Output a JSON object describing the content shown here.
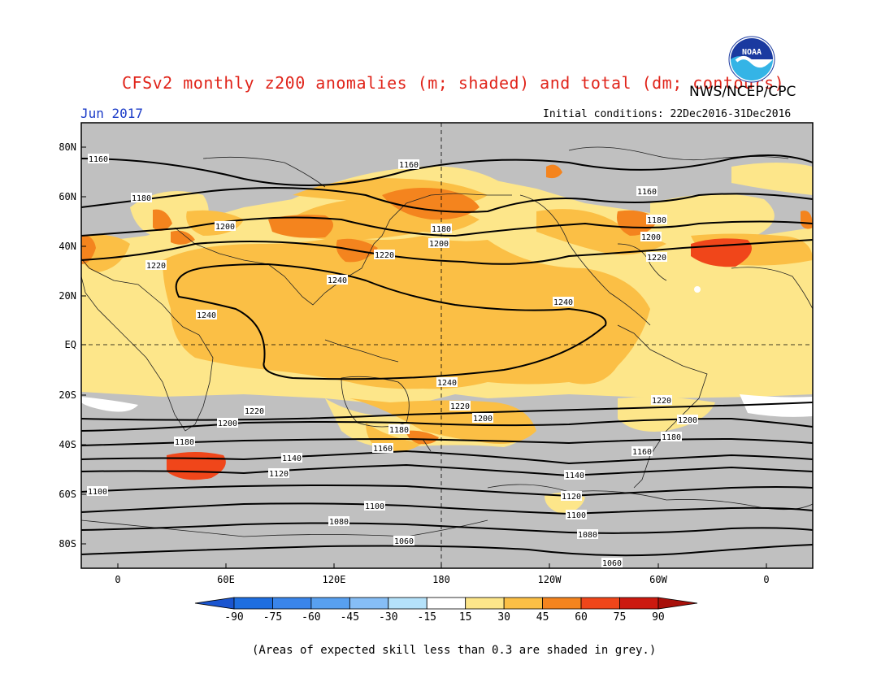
{
  "header": {
    "title": "CFSv2 monthly z200 anomalies (m; shaded) and total (dm; contours)",
    "agency": "NWS/NCEP/CPC",
    "month": "Jun 2017",
    "initial_conditions": "Initial conditions: 22Dec2016-31Dec2016",
    "logo_text": "NOAA"
  },
  "map": {
    "lat_labels": [
      "80N",
      "60N",
      "40N",
      "20N",
      "EQ",
      "20S",
      "40S",
      "60S",
      "80S"
    ],
    "lon_labels": [
      "0",
      "60E",
      "120E",
      "180",
      "120W",
      "60W",
      "0"
    ],
    "contour_labels": [
      "1160",
      "1160",
      "1180",
      "1200",
      "1220",
      "1240",
      "1240",
      "1240",
      "1180",
      "1200",
      "1220",
      "1160",
      "1180",
      "1200",
      "1220",
      "1240",
      "1220",
      "1200",
      "1220",
      "1200",
      "1180",
      "1160",
      "1180",
      "1140",
      "1120",
      "1100",
      "1140",
      "1120",
      "1100",
      "1080",
      "1060",
      "1220",
      "1200",
      "1180",
      "1160",
      "1140",
      "1120",
      "1100",
      "1080",
      "1060"
    ]
  },
  "colorbar": {
    "labels": [
      "-90",
      "-75",
      "-60",
      "-45",
      "-30",
      "-15",
      "15",
      "30",
      "45",
      "60",
      "75",
      "90"
    ],
    "colors": [
      "#1e6ee0",
      "#3a85ea",
      "#58a0f0",
      "#86bef6",
      "#b5e2fa",
      "#ffffff",
      "#fde68a",
      "#fbbf45",
      "#f4841e",
      "#f0461a",
      "#cc1a10"
    ],
    "low_color": "#1a55d0",
    "high_color": "#a8100a"
  },
  "footnote": "(Areas of expected skill less than 0.3 are shaded in grey.)",
  "colors": {
    "grey": "#c0c0c0",
    "light_yellow": "#fde68a",
    "yellow_orange": "#fbbf45",
    "orange": "#f4841e",
    "red_orange": "#f0461a"
  }
}
